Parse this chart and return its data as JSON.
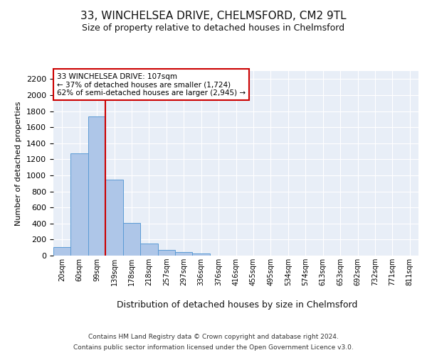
{
  "title1": "33, WINCHELSEA DRIVE, CHELMSFORD, CM2 9TL",
  "title2": "Size of property relative to detached houses in Chelmsford",
  "xlabel": "Distribution of detached houses by size in Chelmsford",
  "ylabel": "Number of detached properties",
  "categories": [
    "20sqm",
    "60sqm",
    "99sqm",
    "139sqm",
    "178sqm",
    "218sqm",
    "257sqm",
    "297sqm",
    "336sqm",
    "376sqm",
    "416sqm",
    "455sqm",
    "495sqm",
    "534sqm",
    "574sqm",
    "613sqm",
    "653sqm",
    "692sqm",
    "732sqm",
    "771sqm",
    "811sqm"
  ],
  "values": [
    110,
    1270,
    1730,
    950,
    410,
    150,
    75,
    45,
    25,
    0,
    0,
    0,
    0,
    0,
    0,
    0,
    0,
    0,
    0,
    0,
    0
  ],
  "bar_color": "#aec6e8",
  "bar_edge_color": "#5b9bd5",
  "red_line_x": 2.5,
  "annotation_text": "33 WINCHELSEA DRIVE: 107sqm\n← 37% of detached houses are smaller (1,724)\n62% of semi-detached houses are larger (2,945) →",
  "annotation_box_color": "#ffffff",
  "annotation_box_edge": "#cc0000",
  "red_line_color": "#cc0000",
  "ylim": [
    0,
    2300
  ],
  "yticks": [
    0,
    200,
    400,
    600,
    800,
    1000,
    1200,
    1400,
    1600,
    1800,
    2000,
    2200
  ],
  "bg_color": "#e8eef7",
  "footer1": "Contains HM Land Registry data © Crown copyright and database right 2024.",
  "footer2": "Contains public sector information licensed under the Open Government Licence v3.0."
}
